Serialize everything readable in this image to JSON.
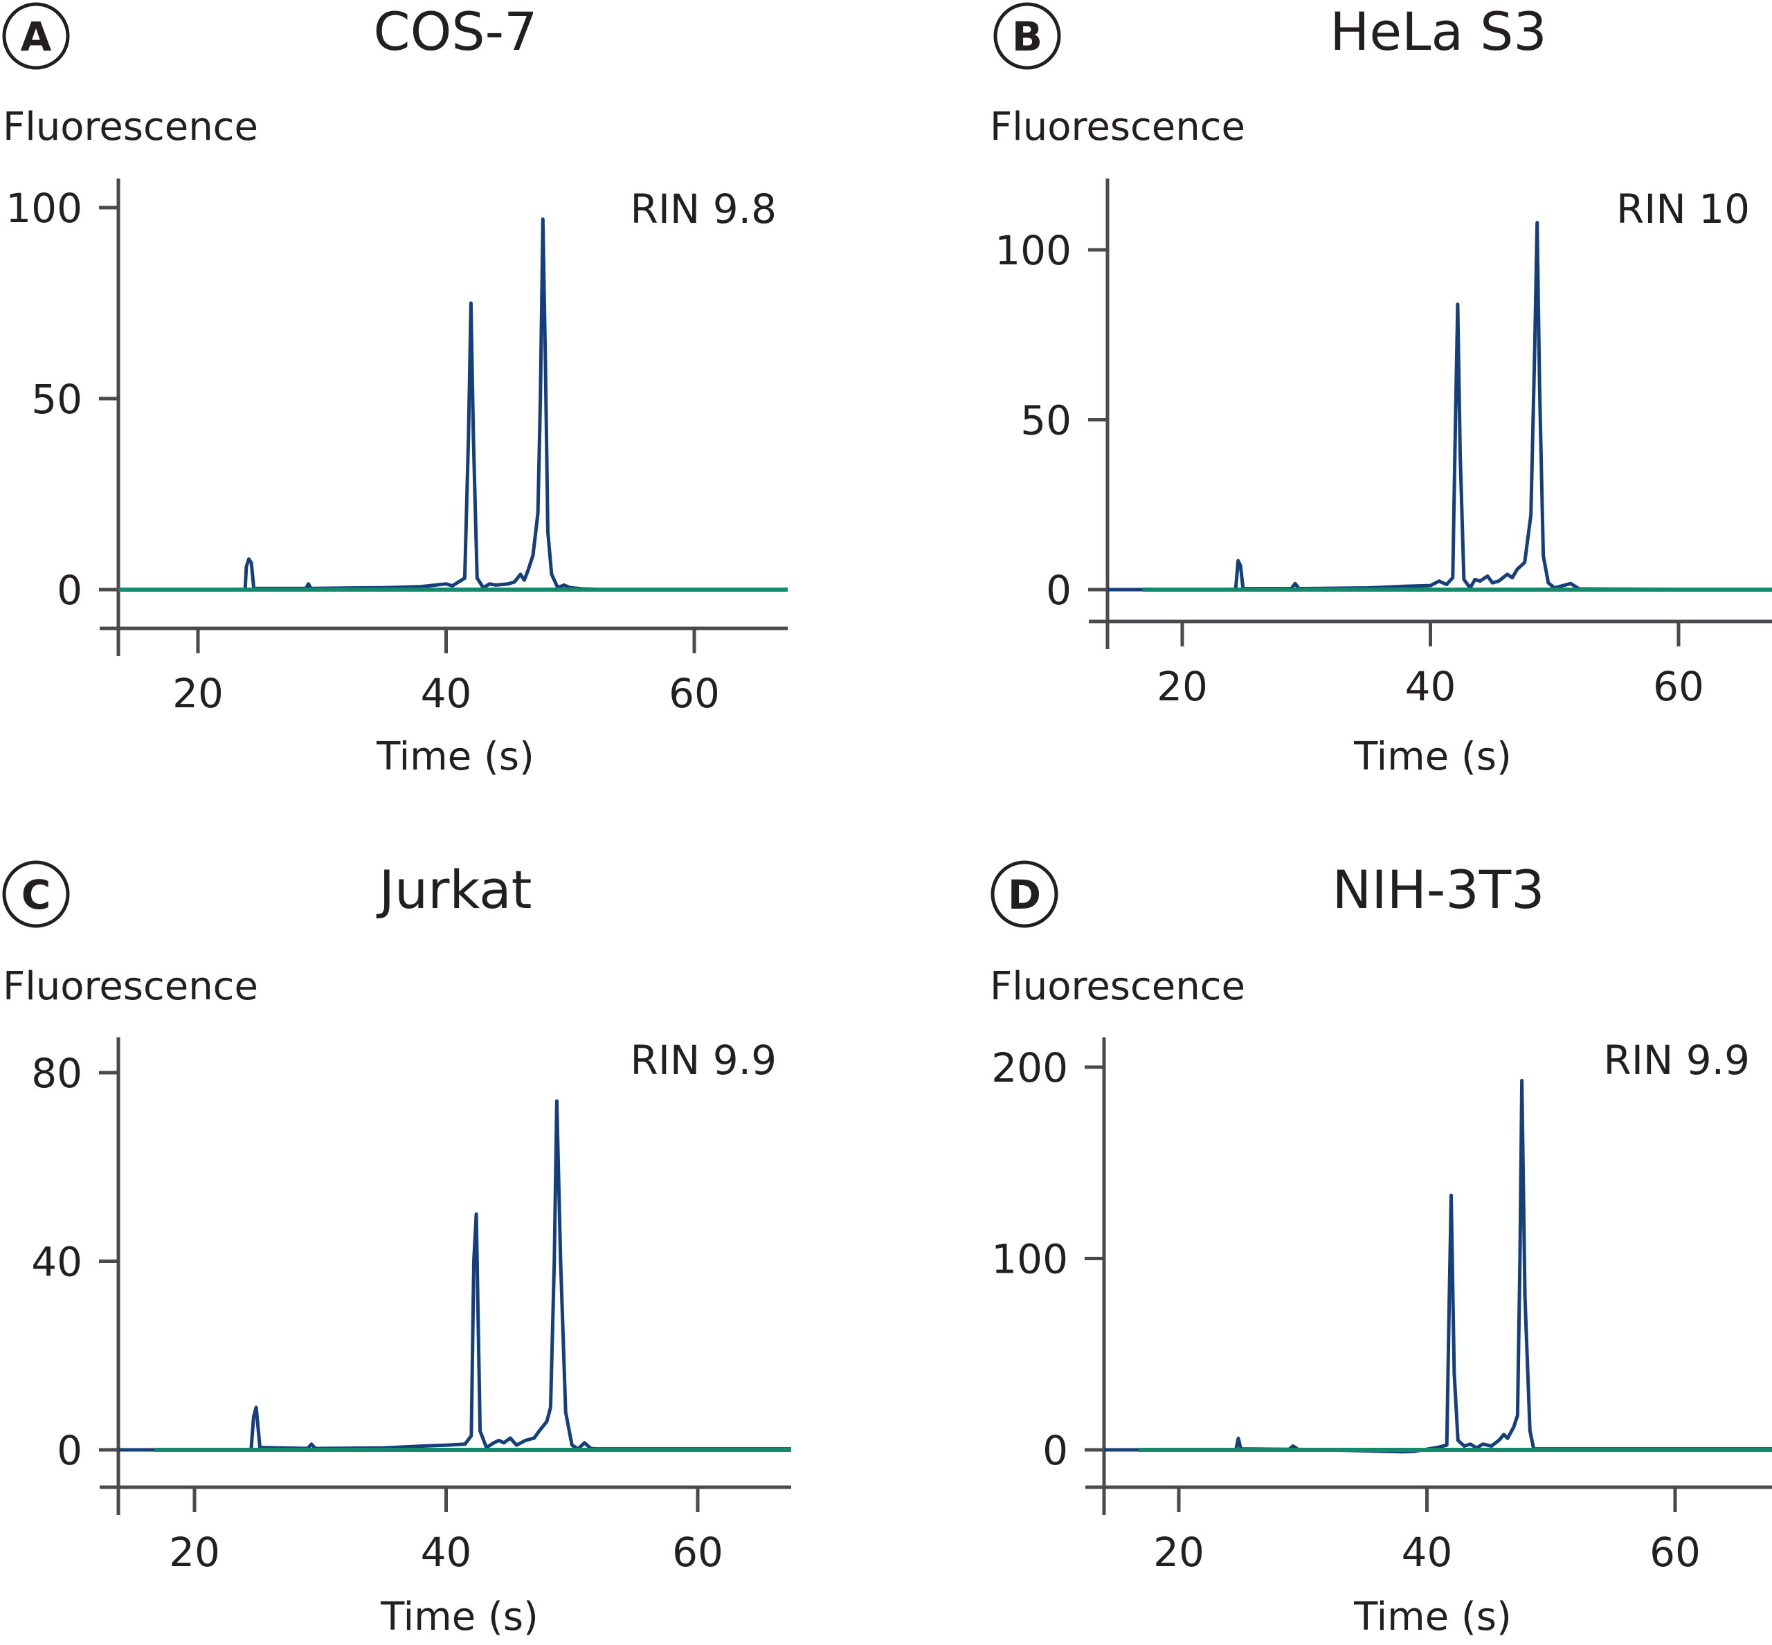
{
  "figure": {
    "trace_color": "#153f7a",
    "baseline_color": "#138a6b",
    "axis_color": "#4a4a4d"
  },
  "chart_data": [
    {
      "type": "line",
      "panel": "A",
      "title": "COS-7",
      "annotation": "RIN 9.8",
      "xlabel": "Time (s)",
      "ylabel": "Fluorescence",
      "xlim": [
        13.6,
        67.6
      ],
      "ylim": [
        -10,
        110
      ],
      "xticks": [
        20,
        40,
        60
      ],
      "yticks": [
        0,
        50,
        100
      ],
      "grid": false,
      "series": [
        {
          "name": "electropherogram",
          "x": [
            13.6,
            23.8,
            23.9,
            24.1,
            24.3,
            24.5,
            28.7,
            28.9,
            29.1,
            35,
            38,
            40,
            40.5,
            41,
            41.5,
            41.8,
            42.0,
            42.2,
            42.5,
            43,
            43.5,
            44,
            45,
            45.5,
            46,
            46.3,
            46.6,
            47,
            47.4,
            47.6,
            47.8,
            48.0,
            48.2,
            48.5,
            49,
            49.5,
            50,
            51,
            53,
            67.6
          ],
          "y": [
            0,
            0,
            6,
            8,
            7,
            0.3,
            0.3,
            1.5,
            0.3,
            0.5,
            0.8,
            1.5,
            1.0,
            2.0,
            3.0,
            40,
            75,
            40,
            3,
            0.5,
            1.5,
            1.2,
            1.5,
            2.0,
            4.0,
            2.5,
            5,
            9,
            20,
            50,
            97,
            60,
            15,
            4,
            0.5,
            1.2,
            0.5,
            0.2,
            0,
            0
          ]
        },
        {
          "name": "baseline",
          "x": [
            13.6,
            67.6
          ],
          "y": [
            0,
            0
          ]
        }
      ]
    },
    {
      "type": "line",
      "panel": "B",
      "title": "HeLa S3",
      "annotation": "RIN 10",
      "xlabel": "Time (s)",
      "ylabel": "Fluorescence",
      "xlim": [
        13.6,
        68
      ],
      "ylim": [
        -10,
        120
      ],
      "xticks": [
        20,
        40,
        60
      ],
      "yticks": [
        0,
        50,
        100
      ],
      "grid": false,
      "series": [
        {
          "name": "electropherogram",
          "x": [
            13.6,
            24.3,
            24.5,
            24.7,
            24.9,
            28.8,
            29.1,
            29.4,
            35,
            38,
            40,
            40.7,
            41.3,
            41.8,
            42.0,
            42.2,
            42.4,
            42.7,
            43.2,
            43.6,
            44.0,
            44.6,
            45.0,
            45.5,
            46.2,
            46.6,
            47.0,
            47.6,
            48.1,
            48.4,
            48.6,
            48.8,
            49.1,
            49.5,
            50,
            51.3,
            52,
            68
          ],
          "y": [
            0,
            0,
            8.5,
            7,
            0.3,
            0.3,
            1.8,
            0.3,
            0.5,
            1.0,
            1.2,
            2.5,
            1.5,
            3.5,
            45,
            84,
            40,
            3,
            0.5,
            3,
            2.5,
            4,
            2.0,
            2.5,
            4.5,
            3.5,
            6,
            8,
            22,
            70,
            108,
            60,
            10,
            2,
            0.5,
            1.8,
            0.2,
            0
          ]
        },
        {
          "name": "baseline",
          "x": [
            13.6,
            68
          ],
          "y": [
            0,
            0
          ]
        }
      ]
    },
    {
      "type": "line",
      "panel": "C",
      "title": "Jurkat",
      "annotation": "RIN 9.9",
      "xlabel": "Time (s)",
      "ylabel": "Fluorescence",
      "xlim": [
        13.6,
        68
      ],
      "ylim": [
        -7,
        88
      ],
      "xticks": [
        20,
        40,
        60
      ],
      "yticks": [
        0,
        40,
        80
      ],
      "grid": false,
      "series": [
        {
          "name": "electropherogram",
          "x": [
            13.6,
            24.5,
            24.7,
            24.9,
            25.2,
            29.0,
            29.3,
            29.6,
            35,
            38,
            40,
            41.5,
            42.0,
            42.2,
            42.4,
            42.7,
            43.2,
            43.8,
            44.2,
            44.6,
            45.1,
            45.6,
            46.3,
            47.0,
            47.4,
            48.0,
            48.3,
            48.6,
            48.8,
            49.1,
            49.5,
            50.0,
            50.5,
            51.0,
            51.5,
            52.0,
            68
          ],
          "y": [
            0,
            0,
            7,
            9,
            0.5,
            0.3,
            1.2,
            0.3,
            0.4,
            0.8,
            1.0,
            1.2,
            3,
            40,
            50,
            4,
            0.5,
            1.5,
            2.0,
            1.5,
            2.5,
            1.0,
            2.0,
            2.5,
            4.0,
            6.0,
            9.0,
            40,
            74,
            40,
            8,
            1.0,
            0.2,
            1.5,
            0.3,
            0.2,
            0.2
          ]
        },
        {
          "name": "baseline",
          "x": [
            13.6,
            68
          ],
          "y": [
            0,
            0
          ]
        }
      ]
    },
    {
      "type": "line",
      "panel": "D",
      "title": "NIH-3T3",
      "annotation": "RIN 9.9",
      "xlabel": "Time (s)",
      "ylabel": "Fluorescence",
      "xlim": [
        13.6,
        68
      ],
      "ylim": [
        -20,
        215
      ],
      "xticks": [
        20,
        40,
        60
      ],
      "yticks": [
        0,
        100,
        200
      ],
      "grid": false,
      "series": [
        {
          "name": "electropherogram",
          "x": [
            13.6,
            24.6,
            24.8,
            25.0,
            28.9,
            29.2,
            29.6,
            35,
            38,
            39,
            41.0,
            41.6,
            41.8,
            41.95,
            42.2,
            42.5,
            43.0,
            43.5,
            44.0,
            44.5,
            45.2,
            45.8,
            46.2,
            46.5,
            47.0,
            47.3,
            47.5,
            47.65,
            47.9,
            48.3,
            48.6,
            50,
            68
          ],
          "y": [
            0,
            0,
            6,
            0.5,
            0.3,
            2.0,
            0.3,
            -0.5,
            -1.0,
            -0.8,
            1.5,
            2.5,
            80,
            133,
            40,
            5,
            2,
            3,
            1,
            3,
            2,
            5,
            8,
            6,
            12,
            18,
            100,
            193,
            80,
            10,
            0.5,
            0.5,
            0.5
          ]
        },
        {
          "name": "baseline",
          "x": [
            13.6,
            68
          ],
          "y": [
            0,
            0
          ]
        }
      ]
    }
  ]
}
